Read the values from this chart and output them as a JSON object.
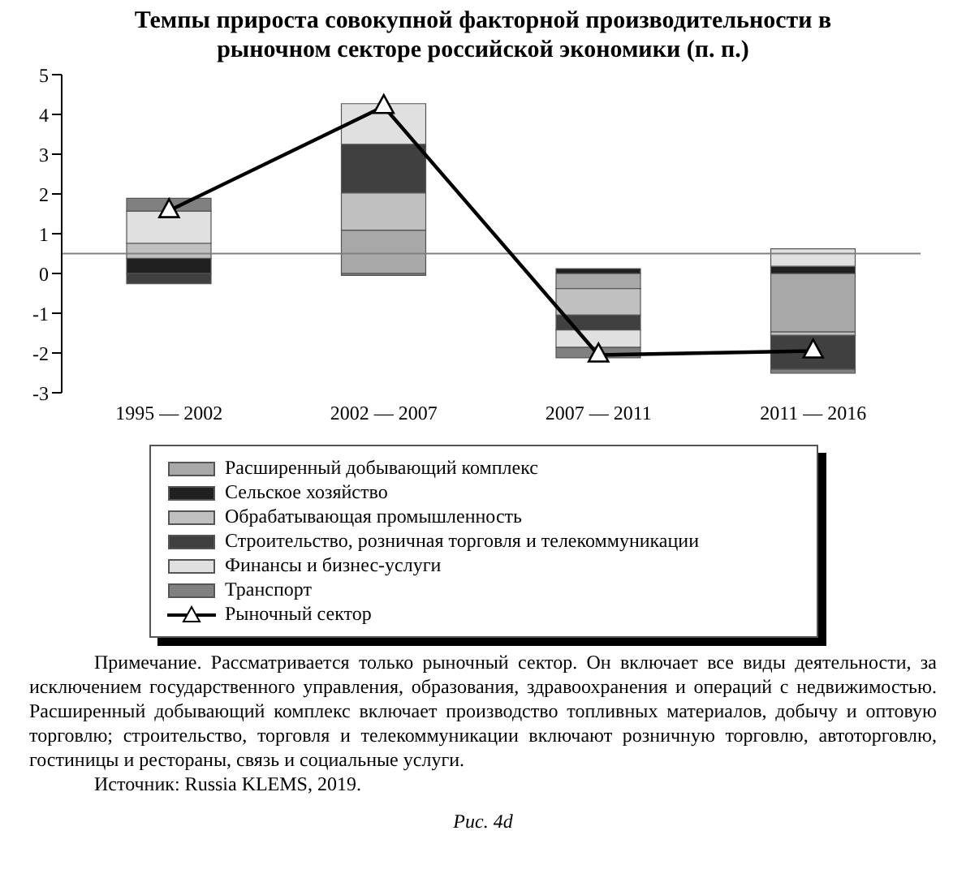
{
  "chart_data": {
    "type": "bar",
    "title": "Темпы прироста совокупной факторной производительности в рыночном секторе российской экономики (п. п.)",
    "categories": [
      "1995 — 2002",
      "2002 — 2007",
      "2007 — 2011",
      "2011 — 2016"
    ],
    "stacked": true,
    "series": [
      {
        "name": "Расширенный добывающий комплекс",
        "color": "#a8a8a8",
        "values": [
          null,
          1.09,
          -0.38,
          -1.47
        ]
      },
      {
        "name": "Сельское хозяйство",
        "color": "#202020",
        "values": [
          0.38,
          0,
          0.12,
          0.18
        ]
      },
      {
        "name": "Обрабатывающая промышленность",
        "color": "#c0c0c0",
        "values": [
          0.38,
          0.94,
          -0.67,
          -0.09
        ]
      },
      {
        "name": "Строительство, розничная торговля и телекоммуникации",
        "color": "#404040",
        "values": [
          -0.26,
          1.22,
          -0.37,
          -0.85
        ]
      },
      {
        "name": "Финансы и бизнес-услуги",
        "color": "#e0e0e0",
        "values": [
          0.81,
          1.02,
          -0.44,
          0.44
        ]
      },
      {
        "name": "Транспорт",
        "color": "#808080",
        "values": [
          0.32,
          -0.05,
          -0.26,
          -0.1
        ]
      },
      {
        "name": "Рыночный сектор",
        "type": "line",
        "color": "#000000",
        "marker": "triangle",
        "values": [
          1.58,
          4.2,
          -2.05,
          -1.95
        ]
      }
    ],
    "ylim": [
      -3,
      5
    ],
    "yticks": [
      -3,
      -2,
      -1,
      0,
      1,
      2,
      3,
      4,
      5
    ],
    "ref_lines": [
      {
        "axis": "y",
        "value": 0.5,
        "color": "#808080"
      }
    ],
    "grid": false,
    "legend": "bottom",
    "annotations": [
      "Примечание. Рассматривается только рыночный сектор. Он включает все виды деятельности, за исключением государственного управления, образования, здравоохранения и операций с недвижимостью. Расширенный добывающий комплекс включает производство топливных материалов, добычу и оптовую торговлю; строительство, торговля и телекоммуникации включают розничную торговлю, автоторговлю, гостиницы и рестораны, связь и социальные услуги.",
      "Источник: Russia KLEMS, 2019.",
      "Рис. 4d"
    ]
  }
}
